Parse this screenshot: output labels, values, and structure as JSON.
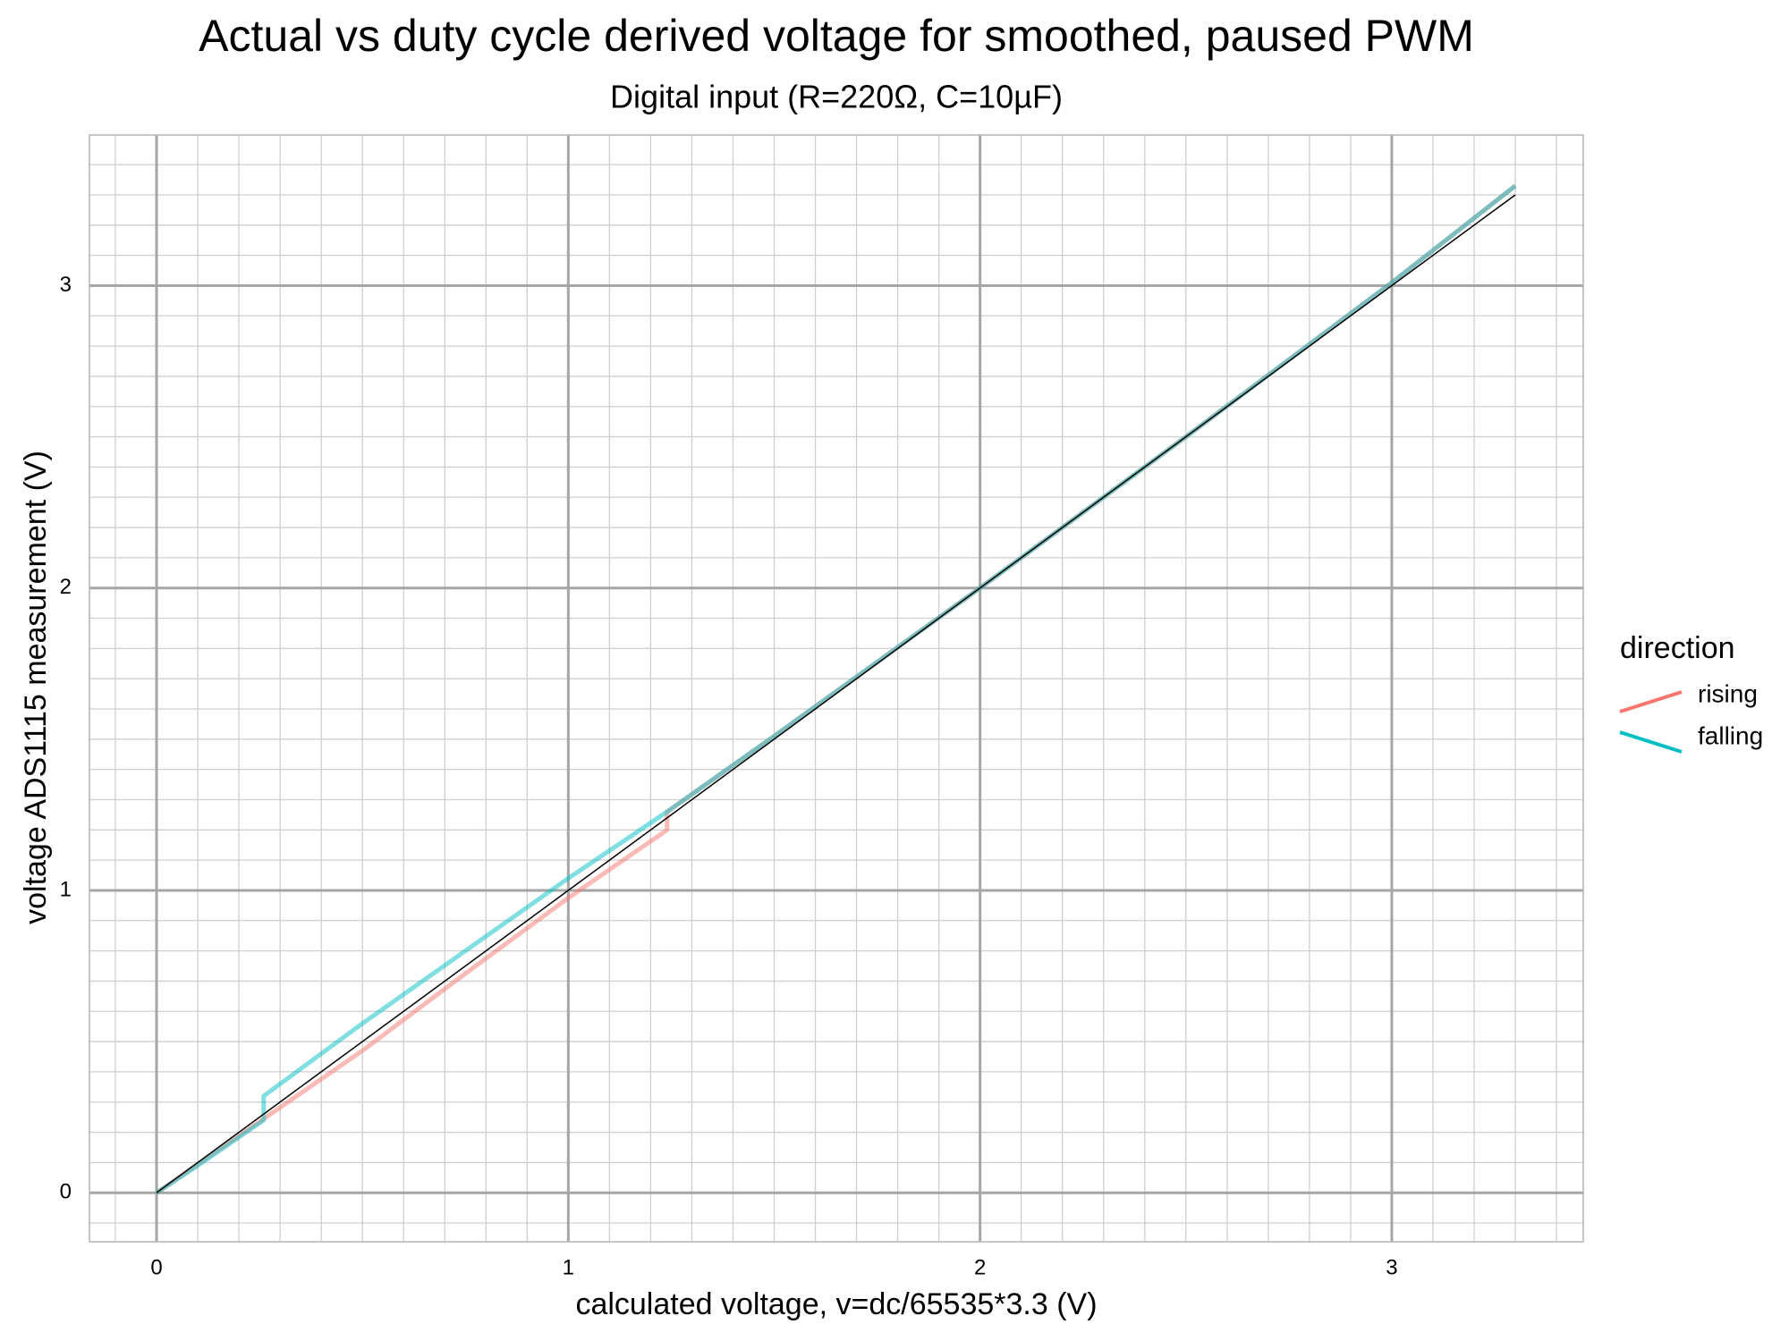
{
  "chart_data": {
    "type": "line",
    "title": "Actual vs duty cycle derived voltage for smoothed, paused PWM",
    "subtitle": "Digital input (R=220Ω, C=10µF)",
    "x_label": "calculated voltage, v=dc/65535*3.3 (V)",
    "y_label": "voltage ADS1115 measurement (V)",
    "legend_title": "direction",
    "legend_position": "right",
    "grid": true,
    "line_alpha": 0.5,
    "xlim": [
      -0.163,
      3.465
    ],
    "ylim": [
      -0.162,
      3.498
    ],
    "xticks": [
      0,
      1,
      2,
      3
    ],
    "yticks": [
      0,
      1,
      2,
      3
    ],
    "x_minor_ticks": [
      -0.1,
      0.1,
      0.2,
      0.3,
      0.4,
      0.5,
      0.6,
      0.7,
      0.8,
      0.9,
      1.1,
      1.2,
      1.3,
      1.4,
      1.5,
      1.6,
      1.7,
      1.8,
      1.9,
      2.1,
      2.2,
      2.3,
      2.4,
      2.5,
      2.6,
      2.7,
      2.8,
      2.9,
      3.1,
      3.2,
      3.3,
      3.4
    ],
    "y_minor_ticks": [
      -0.1,
      0.1,
      0.2,
      0.3,
      0.4,
      0.5,
      0.6,
      0.7,
      0.8,
      0.9,
      1.1,
      1.2,
      1.3,
      1.4,
      1.5,
      1.6,
      1.7,
      1.8,
      1.9,
      2.1,
      2.2,
      2.3,
      2.4,
      2.5,
      2.6,
      2.7,
      2.8,
      2.9,
      3.1,
      3.2,
      3.3,
      3.4
    ],
    "series": [
      {
        "name": "rising",
        "color": "#F8766D",
        "x": [
          0,
          0.25,
          0.5,
          0.75,
          1.0,
          1.24,
          1.24,
          1.5,
          2,
          2.5,
          3,
          3.3
        ],
        "values": [
          0,
          0.235,
          0.47,
          0.725,
          0.975,
          1.2,
          1.26,
          1.51,
          2.0,
          2.5,
          3.01,
          3.33
        ]
      },
      {
        "name": "falling",
        "color": "#00BFC4",
        "x": [
          3.3,
          3,
          2.5,
          2,
          1.5,
          1.24,
          1.0,
          0.75,
          0.5,
          0.27,
          0.26,
          0.26,
          0.1,
          0
        ],
        "values": [
          3.33,
          3.01,
          2.5,
          2.0,
          1.51,
          1.26,
          1.04,
          0.8,
          0.56,
          0.33,
          0.32,
          0.24,
          0.09,
          0
        ]
      }
    ],
    "reference_line": {
      "color": "#000000",
      "x": [
        0,
        3.3
      ],
      "values": [
        0,
        3.3
      ]
    }
  }
}
